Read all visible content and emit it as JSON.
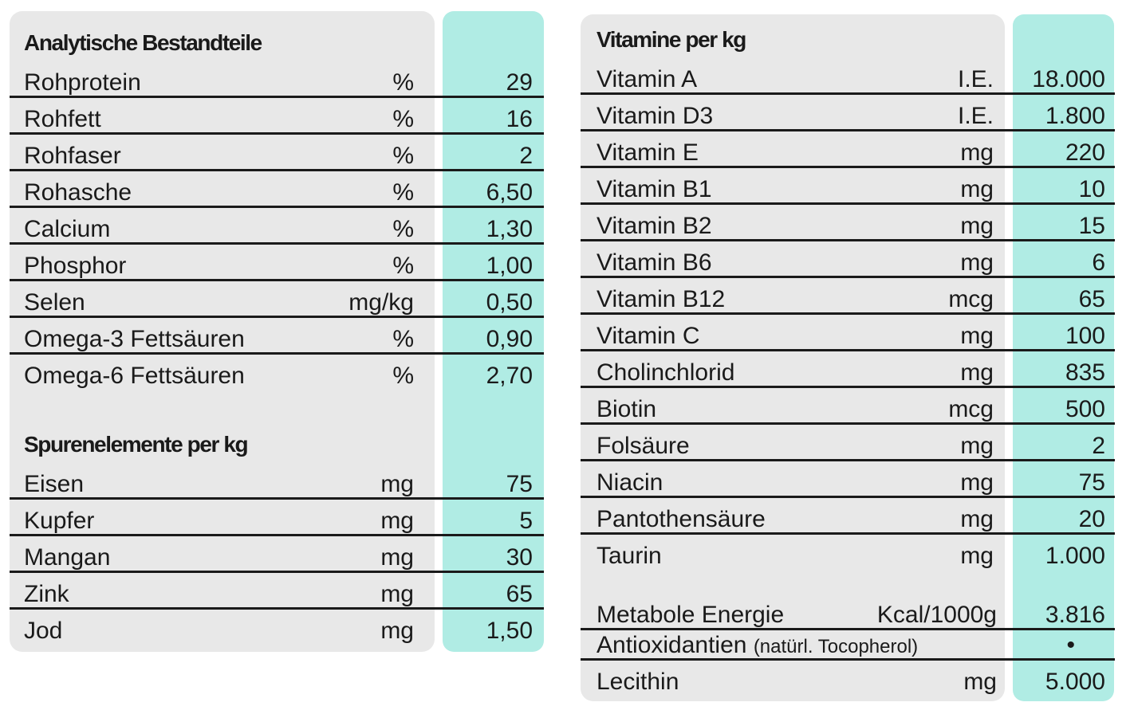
{
  "analytische": {
    "title": "Analytische Bestandteile",
    "rows": [
      {
        "name": "Rohprotein",
        "unit": "%",
        "value": "29"
      },
      {
        "name": "Rohfett",
        "unit": "%",
        "value": "16"
      },
      {
        "name": "Rohfaser",
        "unit": "%",
        "value": "2"
      },
      {
        "name": "Rohasche",
        "unit": "%",
        "value": "6,50"
      },
      {
        "name": "Calcium",
        "unit": "%",
        "value": "1,30"
      },
      {
        "name": "Phosphor",
        "unit": "%",
        "value": "1,00"
      },
      {
        "name": "Selen",
        "unit": "mg/kg",
        "value": "0,50"
      },
      {
        "name": "Omega-3 Fettsäuren",
        "unit": "%",
        "value": "0,90"
      },
      {
        "name": "Omega-6 Fettsäuren",
        "unit": "%",
        "value": "2,70"
      }
    ]
  },
  "spuren": {
    "title": "Spurenelemente per kg",
    "rows": [
      {
        "name": "Eisen",
        "unit": "mg",
        "value": "75"
      },
      {
        "name": "Kupfer",
        "unit": "mg",
        "value": "5"
      },
      {
        "name": "Mangan",
        "unit": "mg",
        "value": "30"
      },
      {
        "name": "Zink",
        "unit": "mg",
        "value": "65"
      },
      {
        "name": "Jod",
        "unit": "mg",
        "value": "1,50"
      }
    ]
  },
  "vitamine": {
    "title": "Vitamine per kg",
    "rows": [
      {
        "name": "Vitamin A",
        "unit": "I.E.",
        "value": "18.000"
      },
      {
        "name": "Vitamin D3",
        "unit": "I.E.",
        "value": "1.800"
      },
      {
        "name": "Vitamin E",
        "unit": "mg",
        "value": "220"
      },
      {
        "name": "Vitamin B1",
        "unit": "mg",
        "value": "10"
      },
      {
        "name": "Vitamin B2",
        "unit": "mg",
        "value": "15"
      },
      {
        "name": "Vitamin B6",
        "unit": "mg",
        "value": "6"
      },
      {
        "name": "Vitamin B12",
        "unit": "mcg",
        "value": "65"
      },
      {
        "name": "Vitamin C",
        "unit": "mg",
        "value": "100"
      },
      {
        "name": "Cholinchlorid",
        "unit": "mg",
        "value": "835"
      },
      {
        "name": "Biotin",
        "unit": "mcg",
        "value": "500"
      },
      {
        "name": "Folsäure",
        "unit": "mg",
        "value": "2"
      },
      {
        "name": "Niacin",
        "unit": "mg",
        "value": "75"
      },
      {
        "name": "Pantothensäure",
        "unit": "mg",
        "value": "20"
      },
      {
        "name": "Taurin",
        "unit": "mg",
        "value": "1.000"
      }
    ]
  },
  "extras": {
    "energie": {
      "name": "Metabole Energie",
      "unit": "Kcal/1000g",
      "value": "3.816"
    },
    "antiox": {
      "name": "Antioxidantien",
      "note": "(natürl. Tocopherol)",
      "value": "•"
    },
    "lecithin": {
      "name": "Lecithin",
      "unit": "mg",
      "value": "5.000"
    }
  }
}
